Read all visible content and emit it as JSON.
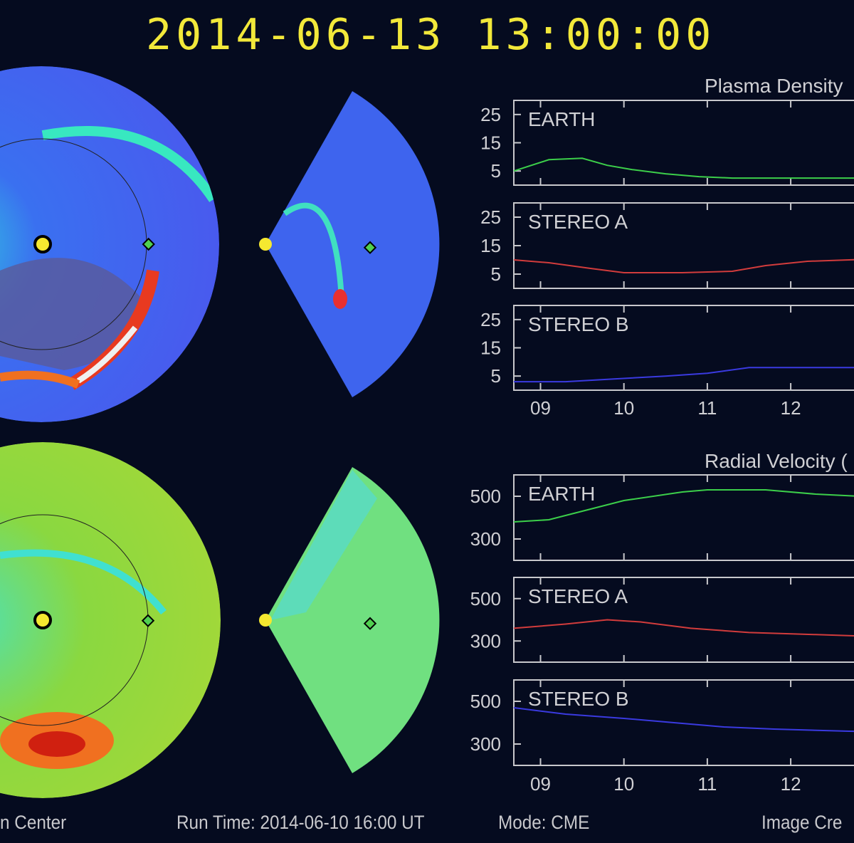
{
  "header": {
    "datetime": "2014-06-13 13:00:00"
  },
  "footer": {
    "left": "n Center",
    "run_time": "Run Time: 2014-06-10 16:00 UT",
    "mode": "Mode: CME",
    "right": "Image Cre"
  },
  "colors": {
    "earth": "#3ccf4a",
    "stereo_a": "#d23c3c",
    "stereo_b": "#3a3ae0",
    "title": "#f2e83a"
  },
  "chart_data": [
    {
      "type": "line",
      "title": "Plasma Density",
      "xlabel": "",
      "ylabel": "",
      "x_ticks": [
        9,
        10,
        11,
        12
      ],
      "x_tick_labels": [
        "09",
        "10",
        "11",
        "12"
      ],
      "xlim": [
        8.68,
        13.1
      ],
      "ylim": [
        0,
        30
      ],
      "y_ticks": [
        25,
        15,
        5
      ],
      "y_tick_labels": [
        "25",
        "15",
        "5"
      ],
      "series": [
        {
          "name": "EARTH",
          "color": "#3ccf4a",
          "x": [
            8.68,
            9.1,
            9.5,
            9.8,
            10.1,
            10.5,
            10.9,
            11.3,
            13.1
          ],
          "y": [
            5,
            9,
            9.5,
            7,
            5.5,
            4,
            3,
            2.5,
            2.5
          ]
        },
        {
          "name": "STEREO A",
          "color": "#d23c3c",
          "x": [
            8.68,
            9.1,
            9.6,
            10.0,
            10.7,
            11.3,
            11.7,
            12.2,
            12.7,
            13.1
          ],
          "y": [
            10,
            9,
            7,
            5.5,
            5.5,
            6,
            8,
            9.5,
            10,
            10.5
          ]
        },
        {
          "name": "STEREO B",
          "color": "#3a3ae0",
          "x": [
            8.68,
            9.3,
            9.9,
            10.5,
            11.0,
            11.5,
            13.1
          ],
          "y": [
            3,
            3,
            4,
            5,
            6,
            8,
            8
          ]
        }
      ]
    },
    {
      "type": "line",
      "title": "Radial Velocity (",
      "xlabel": "",
      "ylabel": "",
      "x_ticks": [
        9,
        10,
        11,
        12
      ],
      "x_tick_labels": [
        "09",
        "10",
        "11",
        "12"
      ],
      "xlim": [
        8.68,
        13.1
      ],
      "ylim": [
        200,
        600
      ],
      "y_ticks": [
        500,
        300
      ],
      "y_tick_labels": [
        "500",
        "300"
      ],
      "series": [
        {
          "name": "EARTH",
          "color": "#3ccf4a",
          "x": [
            8.68,
            9.1,
            9.5,
            10.0,
            10.7,
            11.0,
            11.7,
            12.3,
            13.1
          ],
          "y": [
            380,
            390,
            430,
            480,
            520,
            530,
            530,
            510,
            495
          ]
        },
        {
          "name": "STEREO A",
          "color": "#d23c3c",
          "x": [
            8.68,
            9.3,
            9.8,
            10.2,
            10.8,
            11.5,
            12.3,
            13.1
          ],
          "y": [
            360,
            380,
            400,
            390,
            360,
            340,
            330,
            320
          ]
        },
        {
          "name": "STEREO B",
          "color": "#3a3ae0",
          "x": [
            8.68,
            9.3,
            10.0,
            10.6,
            11.2,
            11.8,
            12.7,
            13.1
          ],
          "y": [
            470,
            440,
            420,
            400,
            380,
            370,
            360,
            358
          ]
        }
      ]
    }
  ]
}
